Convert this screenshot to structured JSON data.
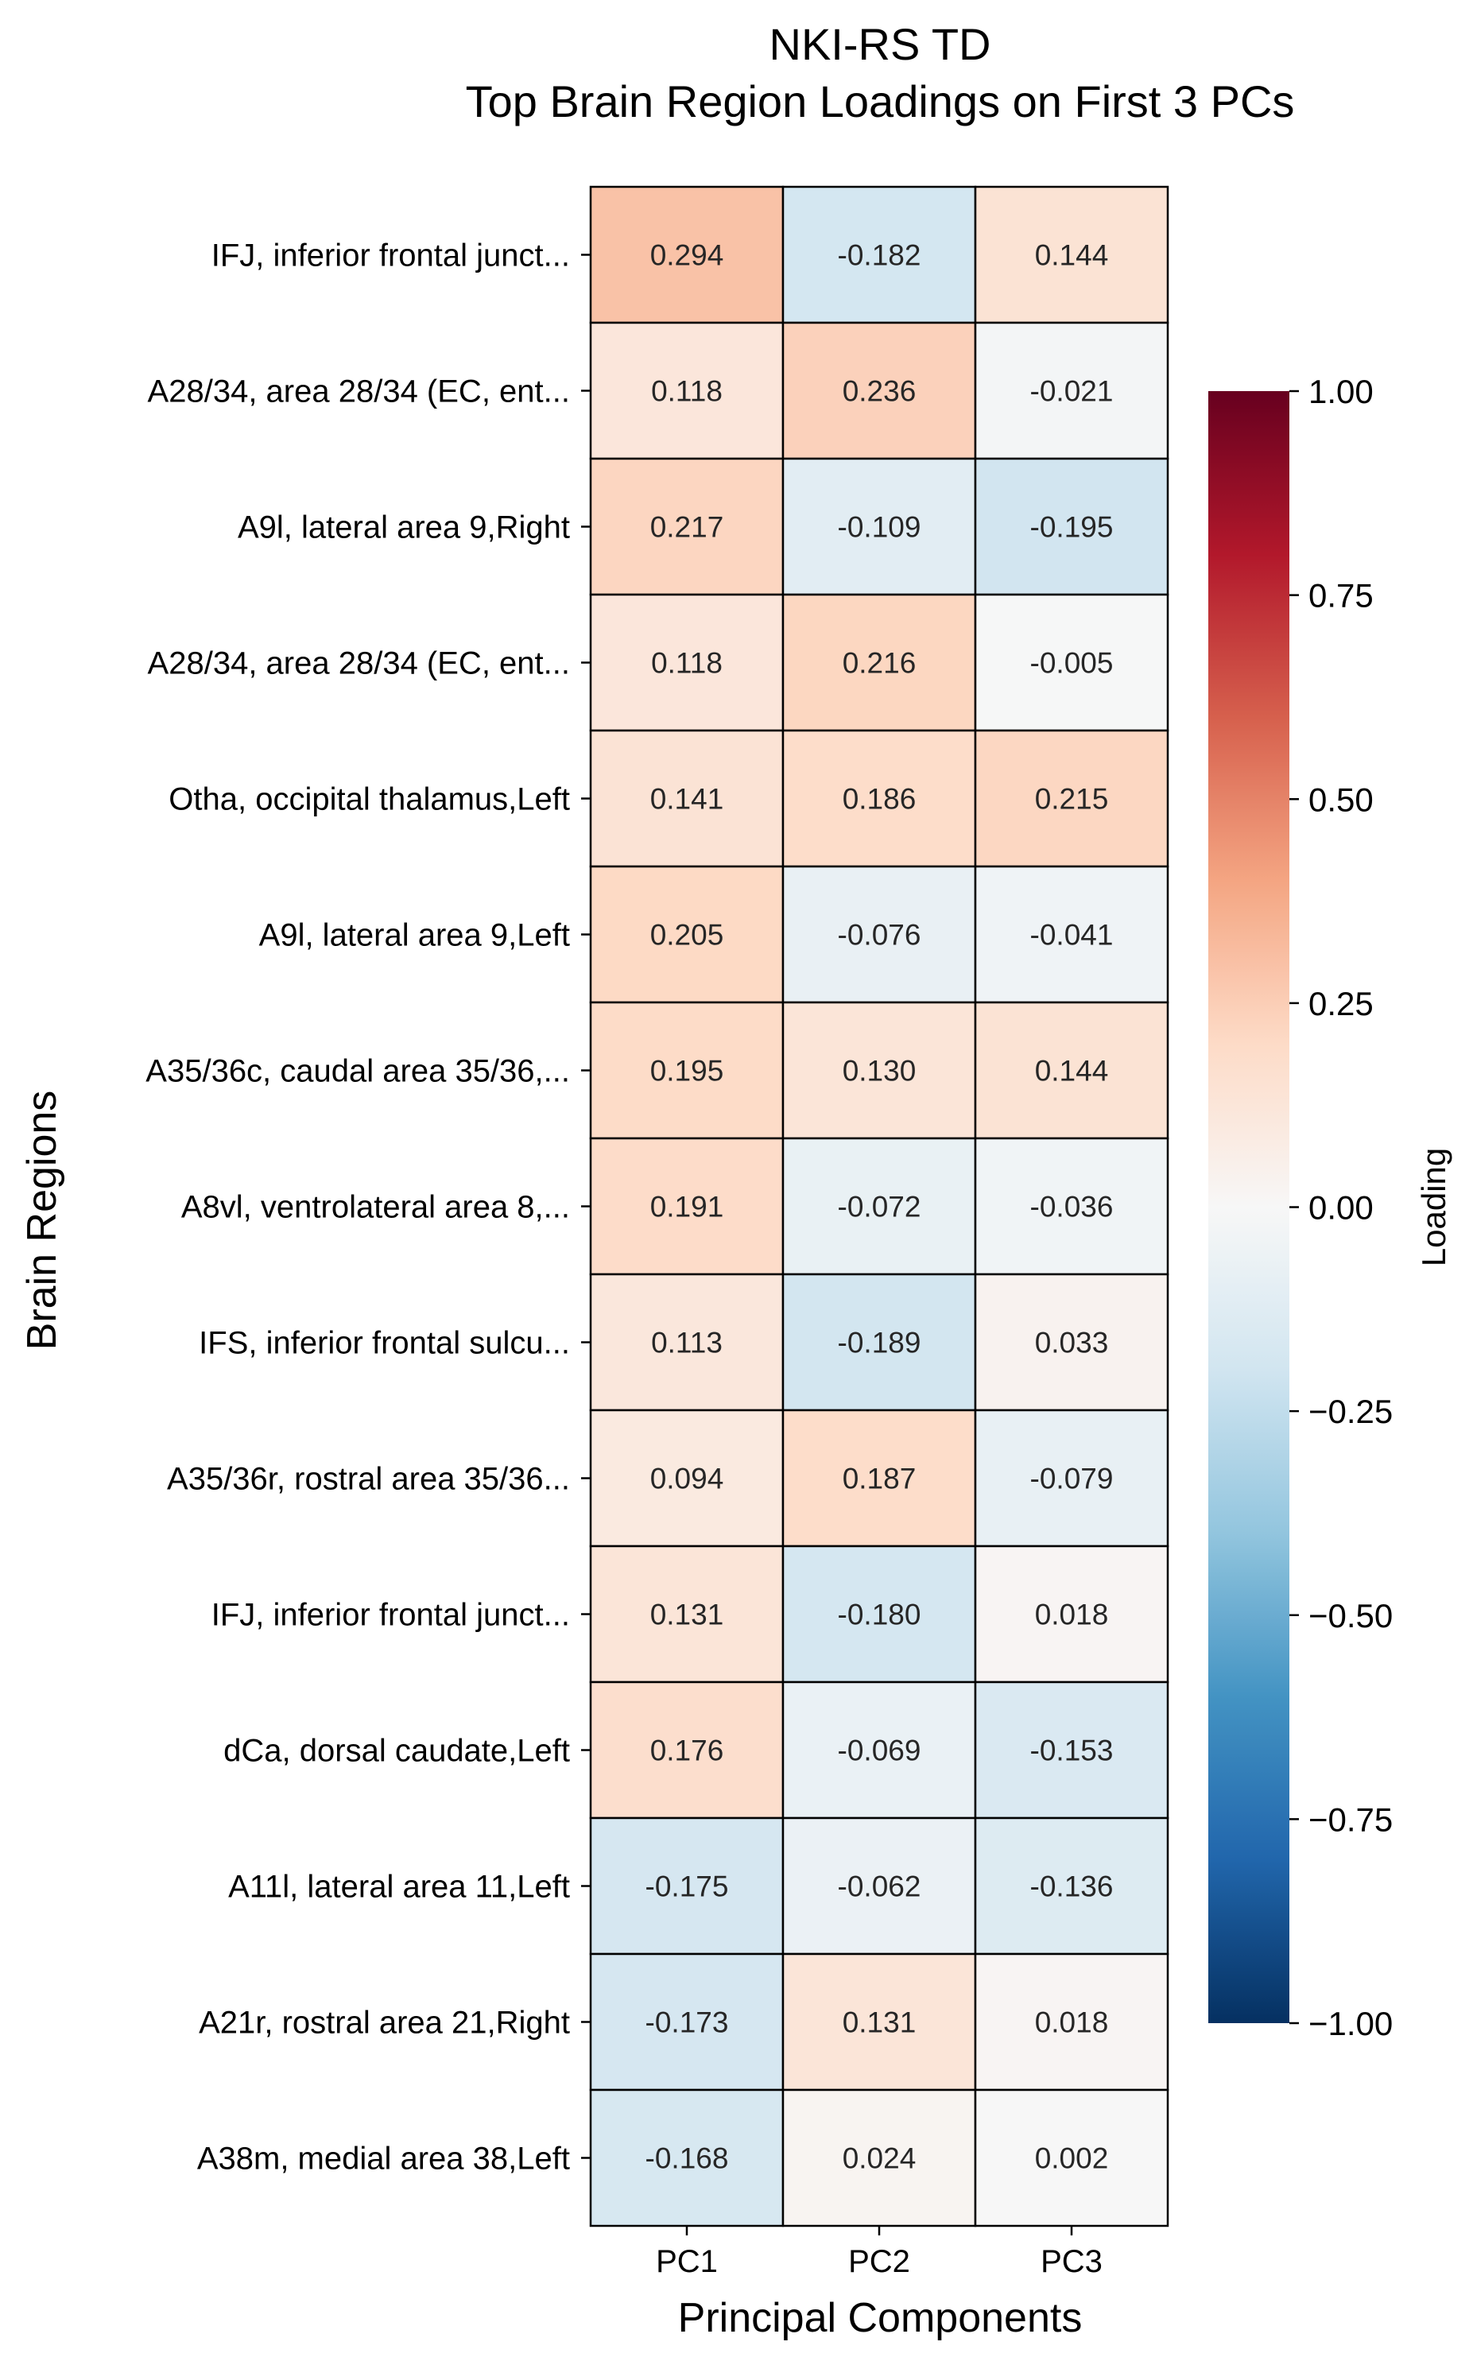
{
  "chart_data": {
    "type": "heatmap",
    "title": "NKI-RS TD\nTop Brain Region Loadings on First 3 PCs",
    "xlabel": "Principal Components",
    "ylabel": "Brain Regions",
    "columns": [
      "PC1",
      "PC2",
      "PC3"
    ],
    "rows": [
      "IFJ, inferior frontal junct...",
      "A28/34, area 28/34 (EC, ent...",
      "A9l, lateral area 9,Right",
      "A28/34, area 28/34 (EC, ent...",
      "Otha, occipital thalamus,Left",
      "A9l, lateral area 9,Left",
      "A35/36c, caudal area 35/36,...",
      "A8vl, ventrolateral area 8,...",
      "IFS, inferior frontal sulcu...",
      "A35/36r, rostral area 35/36...",
      "IFJ, inferior frontal junct...",
      "dCa, dorsal caudate,Left",
      "A11l, lateral area 11,Left",
      "A21r, rostral area 21,Right",
      "A38m, medial area 38,Left"
    ],
    "values": [
      [
        0.294,
        -0.182,
        0.144
      ],
      [
        0.118,
        0.236,
        -0.021
      ],
      [
        0.217,
        -0.109,
        -0.195
      ],
      [
        0.118,
        0.216,
        -0.005
      ],
      [
        0.141,
        0.186,
        0.215
      ],
      [
        0.205,
        -0.076,
        -0.041
      ],
      [
        0.195,
        0.13,
        0.144
      ],
      [
        0.191,
        -0.072,
        -0.036
      ],
      [
        0.113,
        -0.189,
        0.033
      ],
      [
        0.094,
        0.187,
        -0.079
      ],
      [
        0.131,
        -0.18,
        0.018
      ],
      [
        0.176,
        -0.069,
        -0.153
      ],
      [
        -0.175,
        -0.062,
        -0.136
      ],
      [
        -0.173,
        0.131,
        0.018
      ],
      [
        -0.168,
        0.024,
        0.002
      ]
    ],
    "value_labels": [
      [
        "0.294",
        "-0.182",
        "0.144"
      ],
      [
        "0.118",
        "0.236",
        "-0.021"
      ],
      [
        "0.217",
        "-0.109",
        "-0.195"
      ],
      [
        "0.118",
        "0.216",
        "-0.005"
      ],
      [
        "0.141",
        "0.186",
        "0.215"
      ],
      [
        "0.205",
        "-0.076",
        "-0.041"
      ],
      [
        "0.195",
        "0.130",
        "0.144"
      ],
      [
        "0.191",
        "-0.072",
        "-0.036"
      ],
      [
        "0.113",
        "-0.189",
        "0.033"
      ],
      [
        "0.094",
        "0.187",
        "-0.079"
      ],
      [
        "0.131",
        "-0.180",
        "0.018"
      ],
      [
        "0.176",
        "-0.069",
        "-0.153"
      ],
      [
        "-0.175",
        "-0.062",
        "-0.136"
      ],
      [
        "-0.173",
        "0.131",
        "0.018"
      ],
      [
        "-0.168",
        "0.024",
        "0.002"
      ]
    ],
    "colormap": "RdBu_r",
    "colormap_stops": [
      "#053061",
      "#2166ac",
      "#4393c3",
      "#92c5de",
      "#d1e5f0",
      "#f7f7f7",
      "#fddbc7",
      "#f4a582",
      "#d6604d",
      "#b2182b",
      "#67001f"
    ],
    "vmin": -1.0,
    "vmax": 1.0,
    "colorbar": {
      "label": "Loading",
      "ticks": [
        1.0,
        0.75,
        0.5,
        0.25,
        0.0,
        -0.25,
        -0.5,
        -0.75,
        -1.0
      ],
      "tick_labels": [
        "1.00",
        "0.75",
        "0.50",
        "0.25",
        "0.00",
        "−0.25",
        "−0.50",
        "−0.75",
        "−1.00"
      ]
    },
    "grid_lines_color": "#000000"
  }
}
